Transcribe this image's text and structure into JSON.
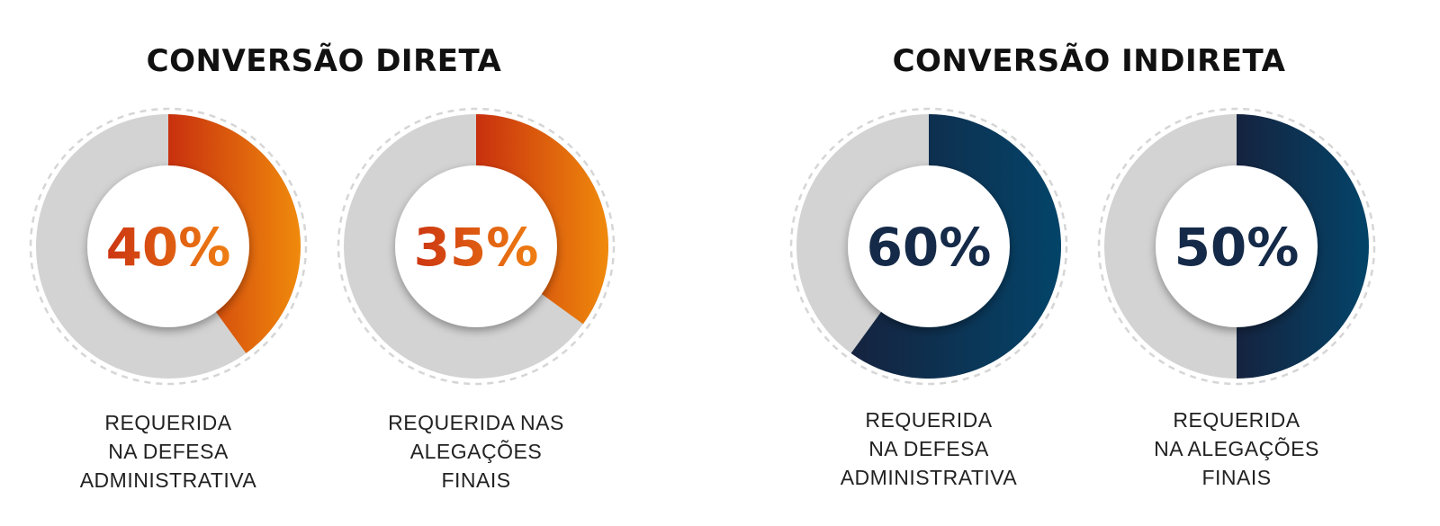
{
  "chart_data": [
    {
      "type": "pie",
      "title": "CONVERSÃO DIRETA",
      "charts": [
        {
          "value": 40,
          "label": "40%",
          "caption": [
            "REQUERIDA",
            "NA DEFESA",
            "ADMINISTRATIVA"
          ]
        },
        {
          "value": 35,
          "label": "35%",
          "caption": [
            "REQUERIDA NAS",
            "ALEGAÇÕES",
            "FINAIS"
          ]
        }
      ],
      "colors": {
        "gradient_start": "#c8300e",
        "gradient_end": "#f08a0c",
        "text": "#d2441a",
        "remainder": "#d3d3d3"
      }
    },
    {
      "type": "pie",
      "title": "CONVERSÃO INDIRETA",
      "charts": [
        {
          "value": 60,
          "label": "60%",
          "caption": [
            "REQUERIDA",
            "NA DEFESA",
            "ADMINISTRATIVA"
          ]
        },
        {
          "value": 50,
          "label": "50%",
          "caption": [
            "REQUERIDA",
            "NA ALEGAÇÕES",
            "FINAIS"
          ]
        }
      ],
      "colors": {
        "gradient_start": "#15233f",
        "gradient_end": "#034469",
        "text": "#142a48",
        "remainder": "#d3d3d3"
      }
    }
  ]
}
